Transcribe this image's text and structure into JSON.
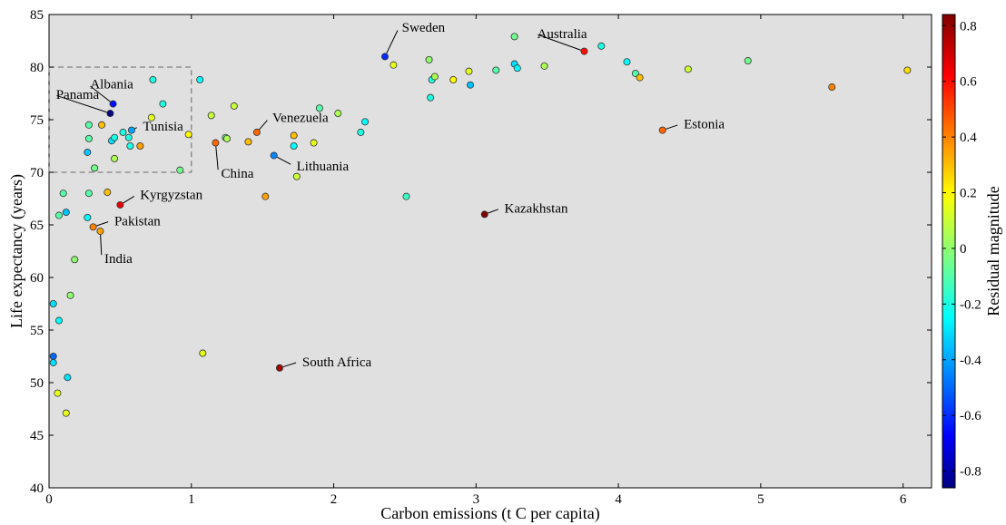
{
  "chart_data": {
    "type": "scatter",
    "xlabel": "Carbon emissions (t C per capita)",
    "ylabel": "Life expectancy (years)",
    "colorbar_label": "Residual magnitude",
    "xlim": [
      0,
      6.2
    ],
    "ylim": [
      40,
      85
    ],
    "xticks": [
      "0",
      "1",
      "2",
      "3",
      "4",
      "5",
      "6"
    ],
    "yticks": [
      "40",
      "45",
      "50",
      "55",
      "60",
      "65",
      "70",
      "75",
      "80",
      "85"
    ],
    "colorbar_ticks": [
      "-0.8",
      "-0.6",
      "-0.4",
      "-0.2",
      "0",
      "0.2",
      "0.4",
      "0.6",
      "0.8"
    ],
    "colorbar_range": [
      -0.86,
      0.84
    ],
    "background": "#e0e0e0",
    "highlight_box": {
      "x": [
        0,
        1
      ],
      "y": [
        70,
        80
      ],
      "style": "dashed"
    },
    "points": [
      {
        "x": 0.03,
        "y": 52.5,
        "r": -0.5
      },
      {
        "x": 0.03,
        "y": 51.9,
        "r": -0.3
      },
      {
        "x": 0.03,
        "y": 57.5,
        "r": -0.3
      },
      {
        "x": 0.06,
        "y": 49.0,
        "r": 0.15
      },
      {
        "x": 0.07,
        "y": 55.9,
        "r": -0.25
      },
      {
        "x": 0.07,
        "y": 65.9,
        "r": -0.1
      },
      {
        "x": 0.1,
        "y": 68.0,
        "r": -0.1
      },
      {
        "x": 0.12,
        "y": 66.2,
        "r": -0.35
      },
      {
        "x": 0.12,
        "y": 47.1,
        "r": 0.15
      },
      {
        "x": 0.13,
        "y": 50.5,
        "r": -0.3
      },
      {
        "x": 0.15,
        "y": 58.3,
        "r": 0.0
      },
      {
        "x": 0.18,
        "y": 61.7,
        "r": 0.0
      },
      {
        "x": 0.27,
        "y": 65.7,
        "r": -0.25
      },
      {
        "x": 0.27,
        "y": 71.9,
        "r": -0.35
      },
      {
        "x": 0.28,
        "y": 68.0,
        "r": -0.1
      },
      {
        "x": 0.28,
        "y": 73.2,
        "r": -0.1
      },
      {
        "x": 0.28,
        "y": 74.5,
        "r": -0.1
      },
      {
        "x": 0.32,
        "y": 70.4,
        "r": -0.05
      },
      {
        "x": 0.31,
        "y": 64.8,
        "r": 0.4
      },
      {
        "x": 0.36,
        "y": 64.4,
        "r": 0.35
      },
      {
        "x": 0.37,
        "y": 74.5,
        "r": 0.3
      },
      {
        "x": 0.41,
        "y": 68.1,
        "r": 0.3
      },
      {
        "x": 0.43,
        "y": 75.6,
        "r": -0.86
      },
      {
        "x": 0.44,
        "y": 73.0,
        "r": -0.3
      },
      {
        "x": 0.45,
        "y": 76.5,
        "r": -0.65
      },
      {
        "x": 0.46,
        "y": 73.3,
        "r": -0.2
      },
      {
        "x": 0.46,
        "y": 71.3,
        "r": 0.05
      },
      {
        "x": 0.5,
        "y": 66.9,
        "r": 0.65
      },
      {
        "x": 0.52,
        "y": 73.8,
        "r": -0.2
      },
      {
        "x": 0.56,
        "y": 73.3,
        "r": -0.2
      },
      {
        "x": 0.57,
        "y": 72.5,
        "r": -0.2
      },
      {
        "x": 0.58,
        "y": 74.0,
        "r": -0.4
      },
      {
        "x": 0.64,
        "y": 72.5,
        "r": 0.35
      },
      {
        "x": 0.72,
        "y": 75.2,
        "r": 0.15
      },
      {
        "x": 0.73,
        "y": 78.8,
        "r": -0.2
      },
      {
        "x": 0.8,
        "y": 76.5,
        "r": -0.2
      },
      {
        "x": 0.92,
        "y": 70.2,
        "r": -0.05
      },
      {
        "x": 0.98,
        "y": 73.6,
        "r": 0.2
      },
      {
        "x": 1.06,
        "y": 78.8,
        "r": -0.25
      },
      {
        "x": 1.08,
        "y": 52.8,
        "r": 0.15
      },
      {
        "x": 1.14,
        "y": 75.4,
        "r": 0.1
      },
      {
        "x": 1.17,
        "y": 72.8,
        "r": 0.45
      },
      {
        "x": 1.24,
        "y": 73.3,
        "r": -0.05
      },
      {
        "x": 1.25,
        "y": 73.2,
        "r": 0.05
      },
      {
        "x": 1.3,
        "y": 76.3,
        "r": 0.1
      },
      {
        "x": 1.4,
        "y": 72.9,
        "r": 0.3
      },
      {
        "x": 1.46,
        "y": 73.8,
        "r": 0.45
      },
      {
        "x": 1.52,
        "y": 67.7,
        "r": 0.35
      },
      {
        "x": 1.58,
        "y": 71.6,
        "r": -0.45
      },
      {
        "x": 1.62,
        "y": 51.4,
        "r": 0.78
      },
      {
        "x": 1.72,
        "y": 73.5,
        "r": 0.3
      },
      {
        "x": 1.72,
        "y": 72.5,
        "r": -0.25
      },
      {
        "x": 1.74,
        "y": 69.6,
        "r": 0.1
      },
      {
        "x": 1.86,
        "y": 72.8,
        "r": 0.15
      },
      {
        "x": 1.9,
        "y": 76.1,
        "r": -0.1
      },
      {
        "x": 2.03,
        "y": 75.6,
        "r": 0.05
      },
      {
        "x": 2.19,
        "y": 73.8,
        "r": -0.2
      },
      {
        "x": 2.22,
        "y": 74.8,
        "r": -0.25
      },
      {
        "x": 2.36,
        "y": 81.0,
        "r": -0.6
      },
      {
        "x": 2.42,
        "y": 80.2,
        "r": 0.15
      },
      {
        "x": 2.51,
        "y": 67.7,
        "r": -0.15
      },
      {
        "x": 2.67,
        "y": 80.7,
        "r": 0.0
      },
      {
        "x": 2.68,
        "y": 77.1,
        "r": -0.2
      },
      {
        "x": 2.69,
        "y": 78.8,
        "r": -0.2
      },
      {
        "x": 2.71,
        "y": 79.1,
        "r": 0.05
      },
      {
        "x": 2.84,
        "y": 78.8,
        "r": 0.2
      },
      {
        "x": 2.95,
        "y": 79.6,
        "r": 0.15
      },
      {
        "x": 2.96,
        "y": 78.3,
        "r": -0.35
      },
      {
        "x": 3.06,
        "y": 66.0,
        "r": 0.84
      },
      {
        "x": 3.14,
        "y": 79.7,
        "r": -0.1
      },
      {
        "x": 3.27,
        "y": 82.9,
        "r": -0.05
      },
      {
        "x": 3.27,
        "y": 80.3,
        "r": -0.3
      },
      {
        "x": 3.29,
        "y": 79.9,
        "r": -0.25
      },
      {
        "x": 3.48,
        "y": 80.1,
        "r": 0.05
      },
      {
        "x": 3.76,
        "y": 81.5,
        "r": 0.6
      },
      {
        "x": 3.88,
        "y": 82.0,
        "r": -0.2
      },
      {
        "x": 4.06,
        "y": 80.5,
        "r": -0.25
      },
      {
        "x": 4.12,
        "y": 79.4,
        "r": -0.1
      },
      {
        "x": 4.15,
        "y": 79.0,
        "r": 0.3
      },
      {
        "x": 4.31,
        "y": 74.0,
        "r": 0.45
      },
      {
        "x": 4.49,
        "y": 79.8,
        "r": 0.1
      },
      {
        "x": 4.91,
        "y": 80.6,
        "r": -0.05
      },
      {
        "x": 5.5,
        "y": 78.1,
        "r": 0.4
      },
      {
        "x": 6.03,
        "y": 79.7,
        "r": 0.25
      }
    ],
    "annotations": [
      {
        "label": "Sweden",
        "point": [
          2.36,
          81.0
        ],
        "text_at": [
          2.46,
          83.8
        ],
        "anchor": "start"
      },
      {
        "label": "Australia",
        "point": [
          3.76,
          81.5
        ],
        "text_at": [
          3.41,
          83.2
        ],
        "anchor": "start"
      },
      {
        "label": "Albania",
        "point": [
          0.45,
          76.5
        ],
        "text_at": [
          0.27,
          78.4
        ],
        "anchor": "start"
      },
      {
        "label": "Panama",
        "point": [
          0.43,
          75.6
        ],
        "text_at": [
          0.03,
          77.4
        ],
        "anchor": "start"
      },
      {
        "label": "Tunisia",
        "point": [
          0.58,
          74.0
        ],
        "text_at": [
          0.64,
          74.4
        ],
        "anchor": "start"
      },
      {
        "label": "Venezuela",
        "point": [
          1.46,
          73.8
        ],
        "text_at": [
          1.55,
          75.2
        ],
        "anchor": "start"
      },
      {
        "label": "China",
        "point": [
          1.17,
          72.8
        ],
        "text_at": [
          1.19,
          69.9
        ],
        "anchor": "start"
      },
      {
        "label": "Lithuania",
        "point": [
          1.58,
          71.6
        ],
        "text_at": [
          1.72,
          70.6
        ],
        "anchor": "start"
      },
      {
        "label": "Estonia",
        "point": [
          4.31,
          74.0
        ],
        "text_at": [
          4.44,
          74.6
        ],
        "anchor": "start"
      },
      {
        "label": "Kyrgyzstan",
        "point": [
          0.5,
          66.9
        ],
        "text_at": [
          0.62,
          67.9
        ],
        "anchor": "start"
      },
      {
        "label": "Kazakhstan",
        "point": [
          3.06,
          66.0
        ],
        "text_at": [
          3.18,
          66.6
        ],
        "anchor": "start"
      },
      {
        "label": "Pakistan",
        "point": [
          0.31,
          64.8
        ],
        "text_at": [
          0.44,
          65.4
        ],
        "anchor": "start"
      },
      {
        "label": "India",
        "point": [
          0.36,
          64.4
        ],
        "text_at": [
          0.37,
          61.8
        ],
        "anchor": "start"
      },
      {
        "label": "South Africa",
        "point": [
          1.62,
          51.4
        ],
        "text_at": [
          1.76,
          52.0
        ],
        "anchor": "start"
      }
    ]
  }
}
